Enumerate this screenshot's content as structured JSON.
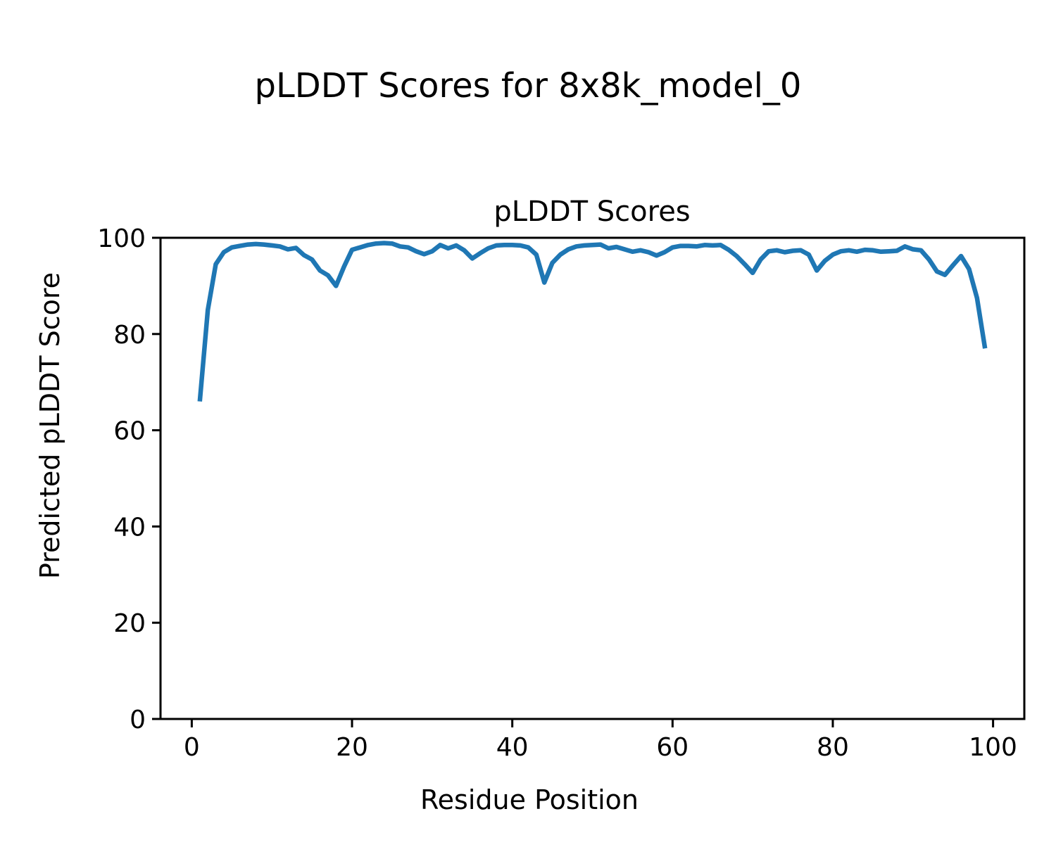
{
  "figure": {
    "suptitle": "pLDDT Scores for 8x8k_model_0",
    "background_color": "#ffffff",
    "text_color": "#000000"
  },
  "chart_data": {
    "type": "line",
    "title": "pLDDT Scores",
    "xlabel": "Residue Position",
    "ylabel": "Predicted pLDDT Score",
    "legend": false,
    "grid": false,
    "line_color": "#1f77b4",
    "line_width": 6.5,
    "xlim": [
      -3.9,
      103.9
    ],
    "ylim": [
      0,
      100
    ],
    "x_ticks": [
      0,
      20,
      40,
      60,
      80,
      100
    ],
    "y_ticks": [
      0,
      20,
      40,
      60,
      80,
      100
    ],
    "x": [
      1,
      2,
      3,
      4,
      5,
      6,
      7,
      8,
      9,
      10,
      11,
      12,
      13,
      14,
      15,
      16,
      17,
      18,
      19,
      20,
      21,
      22,
      23,
      24,
      25,
      26,
      27,
      28,
      29,
      30,
      31,
      32,
      33,
      34,
      35,
      36,
      37,
      38,
      39,
      40,
      41,
      42,
      43,
      44,
      45,
      46,
      47,
      48,
      49,
      50,
      51,
      52,
      53,
      54,
      55,
      56,
      57,
      58,
      59,
      60,
      61,
      62,
      63,
      64,
      65,
      66,
      67,
      68,
      69,
      70,
      71,
      72,
      73,
      74,
      75,
      76,
      77,
      78,
      79,
      80,
      81,
      82,
      83,
      84,
      85,
      86,
      87,
      88,
      89,
      90,
      91,
      92,
      93,
      94,
      95,
      96,
      97,
      98,
      99
    ],
    "y": [
      66,
      85,
      94.5,
      97,
      98,
      98.3,
      98.6,
      98.7,
      98.6,
      98.4,
      98.2,
      97.6,
      97.9,
      96.4,
      95.5,
      93.2,
      92.2,
      90,
      94,
      97.5,
      98,
      98.5,
      98.8,
      98.9,
      98.8,
      98.2,
      98,
      97.2,
      96.6,
      97.2,
      98.5,
      97.8,
      98.4,
      97.4,
      95.7,
      96.8,
      97.8,
      98.4,
      98.5,
      98.5,
      98.4,
      98,
      96.5,
      90.7,
      94.8,
      96.5,
      97.6,
      98.2,
      98.4,
      98.5,
      98.6,
      97.8,
      98.1,
      97.6,
      97.1,
      97.4,
      97,
      96.3,
      97,
      98,
      98.3,
      98.3,
      98.2,
      98.5,
      98.4,
      98.5,
      97.5,
      96.2,
      94.5,
      92.7,
      95.5,
      97.2,
      97.4,
      97,
      97.3,
      97.4,
      96.5,
      93.2,
      95.2,
      96.5,
      97.2,
      97.4,
      97.1,
      97.5,
      97.4,
      97.1,
      97.2,
      97.3,
      98.2,
      97.6,
      97.4,
      95.5,
      93,
      92.3,
      94.3,
      96.2,
      93.5,
      87.5,
      77
    ]
  }
}
